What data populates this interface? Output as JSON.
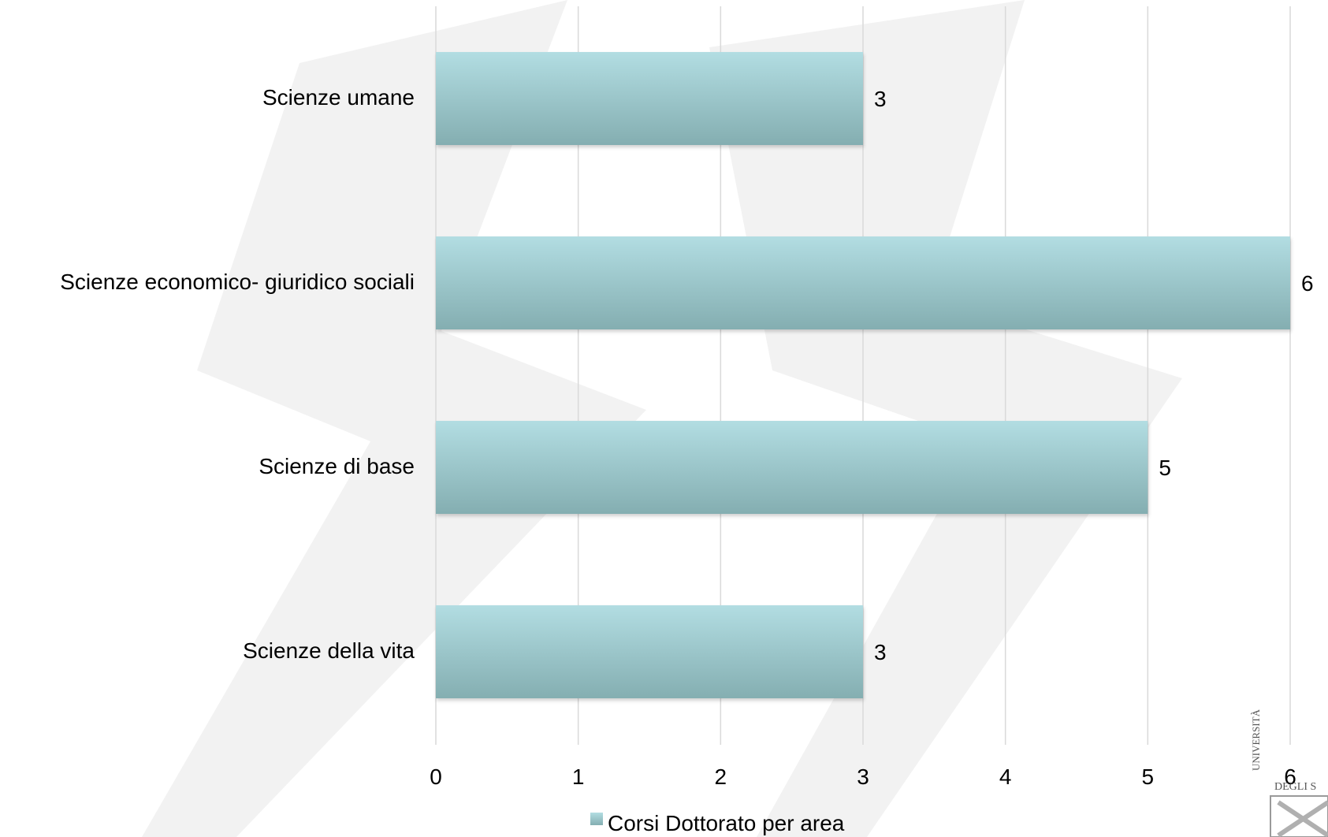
{
  "chart_data": {
    "type": "bar",
    "orientation": "horizontal",
    "categories": [
      "Scienze umane",
      "Scienze economico- giuridico sociali",
      "Scienze di base",
      "Scienze della vita"
    ],
    "series": [
      {
        "name": "Corsi Dottorato per area",
        "values": [
          3,
          6,
          5,
          3
        ]
      }
    ],
    "data_labels": [
      "3",
      "6",
      "5",
      "3"
    ],
    "xlim": [
      0,
      6
    ],
    "xticks": [
      "0",
      "1",
      "2",
      "3",
      "4",
      "5",
      "6"
    ],
    "grid": "vertical",
    "legend_position": "bottom",
    "bar_color_top": "#b2dde2",
    "bar_color_bottom": "#84aeb1",
    "grid_color": "#d9d9d9",
    "watermark_logo_text": "UNIVERSITÀ DEGLI STUDI"
  }
}
